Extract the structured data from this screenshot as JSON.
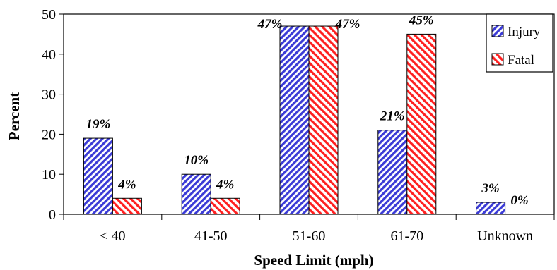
{
  "chart_data": {
    "type": "bar",
    "xlabel": "Speed Limit (mph)",
    "ylabel": "Percent",
    "ylim": [
      0,
      50
    ],
    "yticks": [
      0,
      10,
      20,
      30,
      40,
      50
    ],
    "categories": [
      "< 40",
      "41-50",
      "51-60",
      "61-70",
      "Unknown"
    ],
    "series": [
      {
        "name": "Injury",
        "values": [
          19,
          10,
          47,
          21,
          3
        ],
        "labels": [
          "19%",
          "10%",
          "47%",
          "21%",
          "3%"
        ],
        "color": "#3b3bd6",
        "pattern": "diagonal-stripes"
      },
      {
        "name": "Fatal",
        "values": [
          4,
          4,
          47,
          45,
          0
        ],
        "labels": [
          "4%",
          "4%",
          "47%",
          "45%",
          "0%"
        ],
        "color": "#ff2020",
        "pattern": "diagonal-stripes"
      }
    ],
    "grid": false,
    "legend": "top-right"
  }
}
